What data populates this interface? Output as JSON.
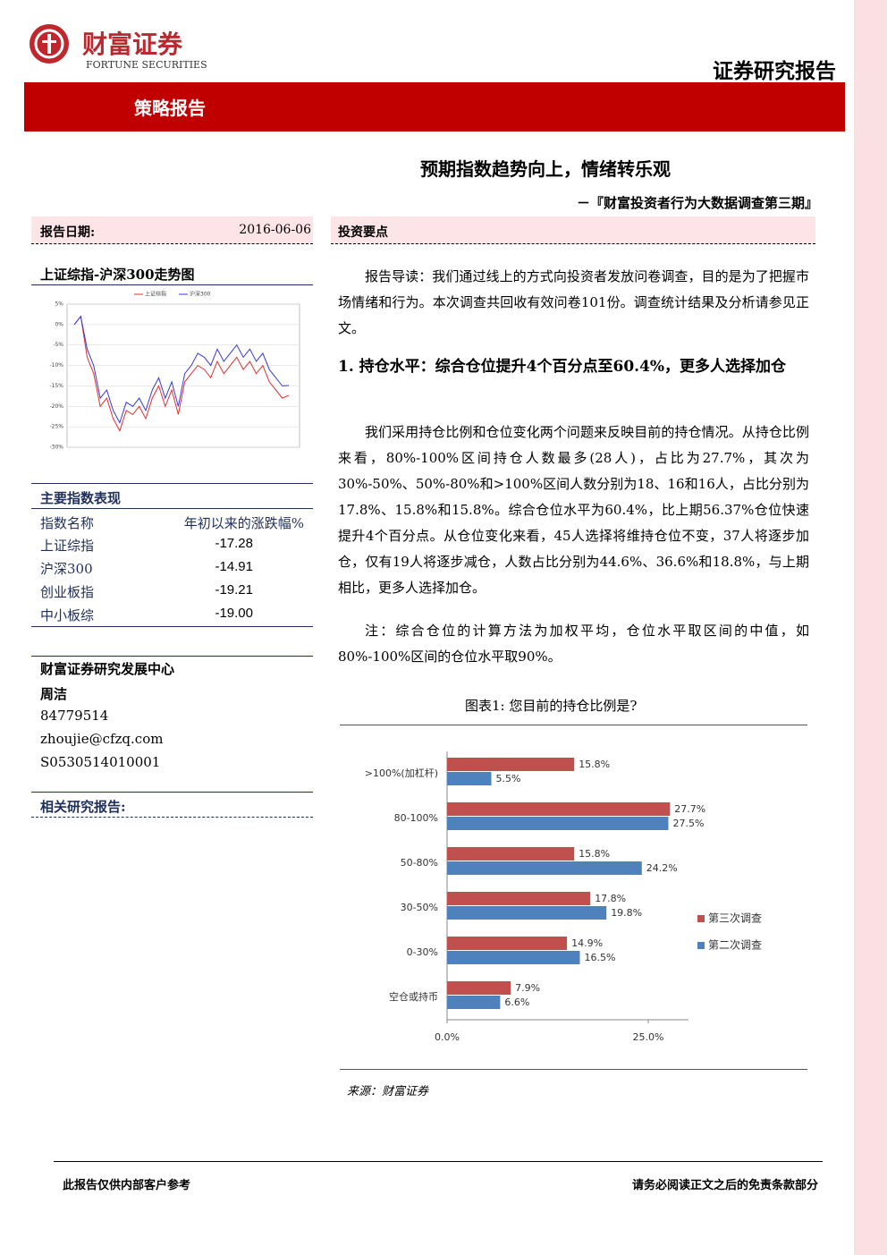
{
  "header": {
    "brand": "财富证券",
    "brand_en": "FORTUNE SECURITIES",
    "report_kind": "证券研究报告",
    "band": "策略报告"
  },
  "title": "预期指数趋势向上，情绪转乐观",
  "subtitle": "－『财富投资者行为大数据调查第三期』",
  "left": {
    "date_label": "报告日期:",
    "date": "2016-06-06",
    "index_table": {
      "title": "主要指数表现",
      "header": [
        "指数名称",
        "年初以来的涨跌幅%"
      ],
      "rows": [
        [
          "上证综指",
          "-17.28"
        ],
        [
          "沪深300",
          "-14.91"
        ],
        [
          "创业板指",
          "-19.21"
        ],
        [
          "中小板综",
          "-19.00"
        ]
      ]
    },
    "contact": {
      "dept": "财富证券研究发展中心",
      "name": "周洁",
      "phone": "84779514",
      "email": "zhoujie@cfzq.com",
      "cert": "S0530514010001"
    },
    "related": "相关研究报告:"
  },
  "right": {
    "section": "投资要点",
    "p1": "报告导读：我们通过线上的方式向投资者发放问卷调查，目的是为了把握市场情绪和行为。本次调查共回收有效问卷101份。调查统计结果及分析请参见正文。",
    "heading": "1. 持仓水平：综合仓位提升4个百分点至60.4%，更多人选择加仓",
    "p2": "我们采用持仓比例和仓位变化两个问题来反映目前的持仓情况。从持仓比例来看，80%-100%区间持仓人数最多(28人)，占比为27.7%，其次为30%-50%、50%-80%和>100%区间人数分别为18、16和16人，占比分别为17.8%、15.8%和15.8%。综合仓位水平为60.4%，比上期56.37%仓位快速提升4个百分点。从仓位变化来看，45人选择将维持仓位不变，37人将逐步加仓，仅有19人将逐步减仓，人数占比分别为44.6%、36.6%和18.8%，与上期相比，更多人选择加仓。",
    "p3": "注：综合仓位的计算方法为加权平均，仓位水平取区间的中值，如80%-100%区间的仓位水平取90%。",
    "source": "来源：财富证券"
  },
  "footer": {
    "left": "此报告仅供内部客户参考",
    "right": "请务必阅读正文之后的免责条款部分"
  },
  "chart_data": [
    {
      "type": "line",
      "title": "上证综指-沪深300走势图",
      "ylim": [
        -30,
        5
      ],
      "yticks": [
        {
          "value": 5,
          "label": "5%"
        },
        {
          "value": 0,
          "label": "0%"
        },
        {
          "value": -5,
          "label": "-5%"
        },
        {
          "value": -10,
          "label": "-10%"
        },
        {
          "value": -15,
          "label": "-15%"
        },
        {
          "value": -20,
          "label": "-20%"
        },
        {
          "value": -25,
          "label": "-25%"
        },
        {
          "value": -30,
          "label": "-30%"
        }
      ],
      "grid": true,
      "series": [
        {
          "name": "上证综指",
          "color": "#e03030",
          "values": [
            0,
            2,
            -8,
            -12,
            -20,
            -18,
            -23,
            -26,
            -21,
            -22,
            -20,
            -23,
            -18,
            -15,
            -20,
            -16,
            -22,
            -14,
            -12,
            -10,
            -11,
            -13,
            -9,
            -12,
            -10,
            -8,
            -11,
            -9,
            -12,
            -10,
            -14,
            -16,
            -18,
            -17.28
          ]
        },
        {
          "name": "沪深300",
          "color": "#3a3ad0",
          "values": [
            0,
            2,
            -6,
            -10,
            -18,
            -16,
            -21,
            -24,
            -19,
            -20,
            -18,
            -21,
            -16,
            -13,
            -18,
            -14,
            -20,
            -12,
            -10,
            -7,
            -8,
            -10,
            -6,
            -9,
            -7,
            -5,
            -8,
            -6,
            -9,
            -7,
            -11,
            -13,
            -15,
            -14.91
          ]
        }
      ]
    },
    {
      "type": "hbar",
      "title": "图表1: 您目前的持仓比例是?",
      "categories": [
        ">100%(加杠杆)",
        "80-100%",
        "50-80%",
        "30-50%",
        "0-30%",
        "空仓或持币"
      ],
      "xlim": [
        0,
        30
      ],
      "xticks": [
        {
          "value": 0,
          "label": "0.0%"
        },
        {
          "value": 25,
          "label": "25.0%"
        }
      ],
      "legend": "right",
      "series": [
        {
          "name": "第三次调查",
          "color": "#c0504d",
          "values": [
            15.8,
            27.7,
            15.8,
            17.8,
            14.9,
            7.9
          ],
          "value_labels": [
            "15.8%",
            "27.7%",
            "15.8%",
            "17.8%",
            "14.9%",
            "7.9%"
          ]
        },
        {
          "name": "第二次调查",
          "color": "#4f81bd",
          "values": [
            5.5,
            27.5,
            24.2,
            19.8,
            16.5,
            6.6
          ],
          "value_labels": [
            "5.5%",
            "27.5%",
            "24.2%",
            "19.8%",
            "16.5%",
            "6.6%"
          ]
        }
      ]
    }
  ]
}
